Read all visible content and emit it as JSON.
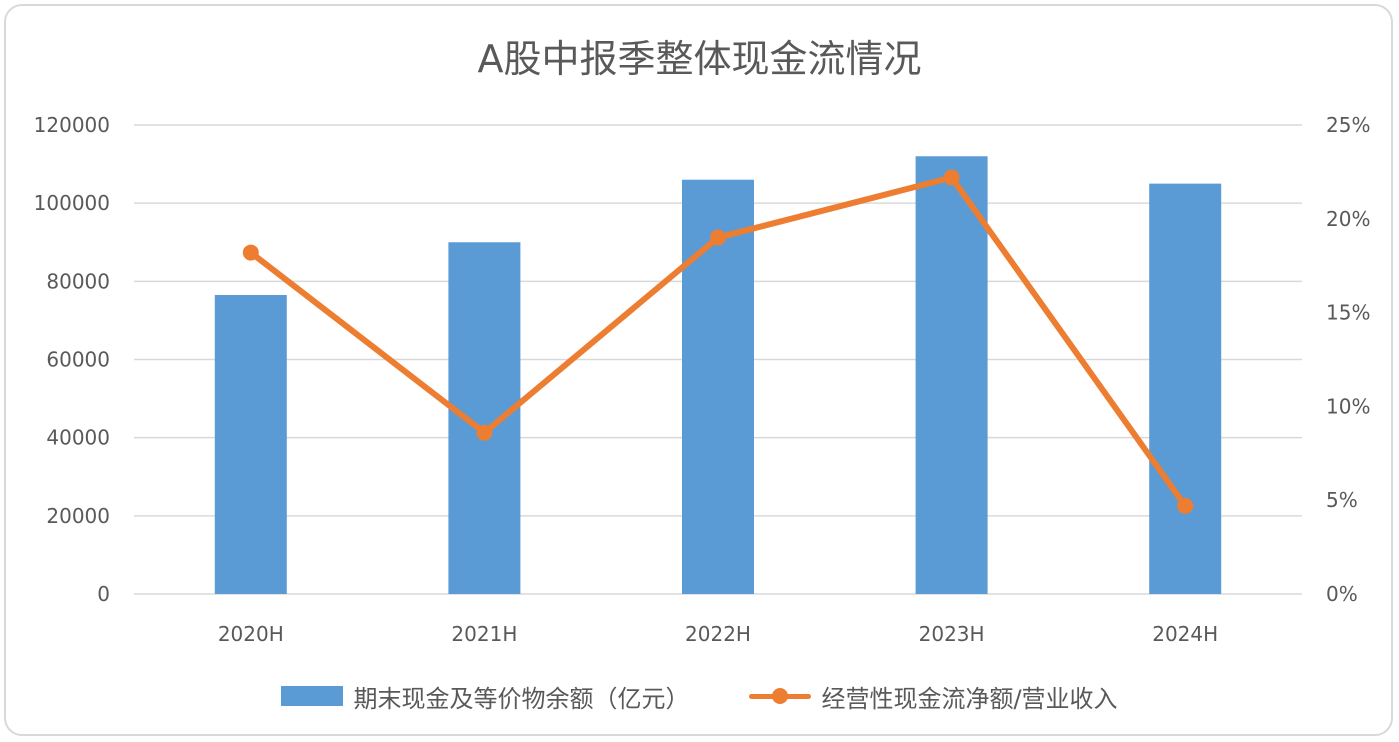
{
  "chart_data": {
    "type": "bar+line",
    "title": "A股中报季整体现金流情况",
    "categories": [
      "2020H",
      "2021H",
      "2022H",
      "2023H",
      "2024H"
    ],
    "series": [
      {
        "name": "期末现金及等价物余额（亿元）",
        "type": "bar",
        "axis": "left",
        "color": "#5b9bd5",
        "values": [
          76500,
          90000,
          106000,
          112000,
          105000
        ]
      },
      {
        "name": "经营性现金流净额/营业收入",
        "type": "line",
        "axis": "right",
        "color": "#ed7d31",
        "values": [
          0.182,
          0.086,
          0.19,
          0.222,
          0.047
        ]
      }
    ],
    "y_left": {
      "min": 0,
      "max": 120000,
      "ticks": [
        "0",
        "20000",
        "40000",
        "60000",
        "80000",
        "100000",
        "120000"
      ]
    },
    "y_right": {
      "min": 0,
      "max": 0.25,
      "ticks": [
        "0%",
        "5%",
        "10%",
        "15%",
        "20%",
        "25%"
      ]
    },
    "grid": true,
    "legend_position": "bottom"
  }
}
